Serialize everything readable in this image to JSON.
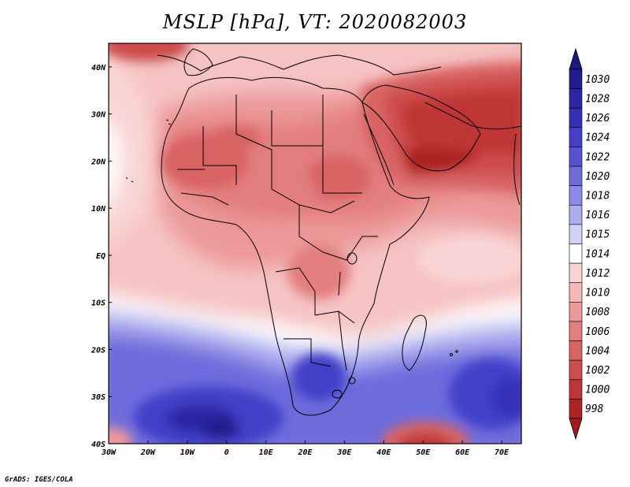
{
  "title": "MSLP [hPa], VT: 2020082003",
  "credit": "GrADS: IGES/COLA",
  "map": {
    "lon_range": [
      -30,
      75
    ],
    "lat_range": [
      -40,
      45
    ],
    "lon_ticks": [
      {
        "value": -30,
        "label": "30W"
      },
      {
        "value": -20,
        "label": "20W"
      },
      {
        "value": -10,
        "label": "10W"
      },
      {
        "value": 0,
        "label": "0"
      },
      {
        "value": 10,
        "label": "10E"
      },
      {
        "value": 20,
        "label": "20E"
      },
      {
        "value": 30,
        "label": "30E"
      },
      {
        "value": 40,
        "label": "40E"
      },
      {
        "value": 50,
        "label": "50E"
      },
      {
        "value": 60,
        "label": "60E"
      },
      {
        "value": 70,
        "label": "70E"
      }
    ],
    "lat_ticks": [
      {
        "value": 40,
        "label": "40N"
      },
      {
        "value": 30,
        "label": "30N"
      },
      {
        "value": 20,
        "label": "20N"
      },
      {
        "value": 10,
        "label": "10N"
      },
      {
        "value": 0,
        "label": "EQ"
      },
      {
        "value": -10,
        "label": "10S"
      },
      {
        "value": -20,
        "label": "20S"
      },
      {
        "value": -30,
        "label": "30S"
      },
      {
        "value": -40,
        "label": "40S"
      }
    ]
  },
  "colorbar": {
    "levels": [
      {
        "label": "1030",
        "color": "#221d8e"
      },
      {
        "label": "1028",
        "color": "#2b26a4"
      },
      {
        "label": "1026",
        "color": "#3530b8"
      },
      {
        "label": "1024",
        "color": "#433fc8"
      },
      {
        "label": "1022",
        "color": "#5553d2"
      },
      {
        "label": "1020",
        "color": "#6d6cdd"
      },
      {
        "label": "1018",
        "color": "#8b8ae6"
      },
      {
        "label": "1016",
        "color": "#adadef"
      },
      {
        "label": "1015",
        "color": "#d2d2f7"
      },
      {
        "label": "1014",
        "color": "#ffffff"
      },
      {
        "label": "1012",
        "color": "#fad4d4"
      },
      {
        "label": "1010",
        "color": "#f4b6b6"
      },
      {
        "label": "1008",
        "color": "#ec9999"
      },
      {
        "label": "1006",
        "color": "#e37e7e"
      },
      {
        "label": "1004",
        "color": "#d86464"
      },
      {
        "label": "1002",
        "color": "#cd4c4c"
      },
      {
        "label": "1000",
        "color": "#bf3535"
      },
      {
        "label": "998",
        "color": "#ad2222"
      }
    ],
    "top_arrow_color": "#1c1880",
    "bottom_arrow_color": "#a01c1c"
  }
}
